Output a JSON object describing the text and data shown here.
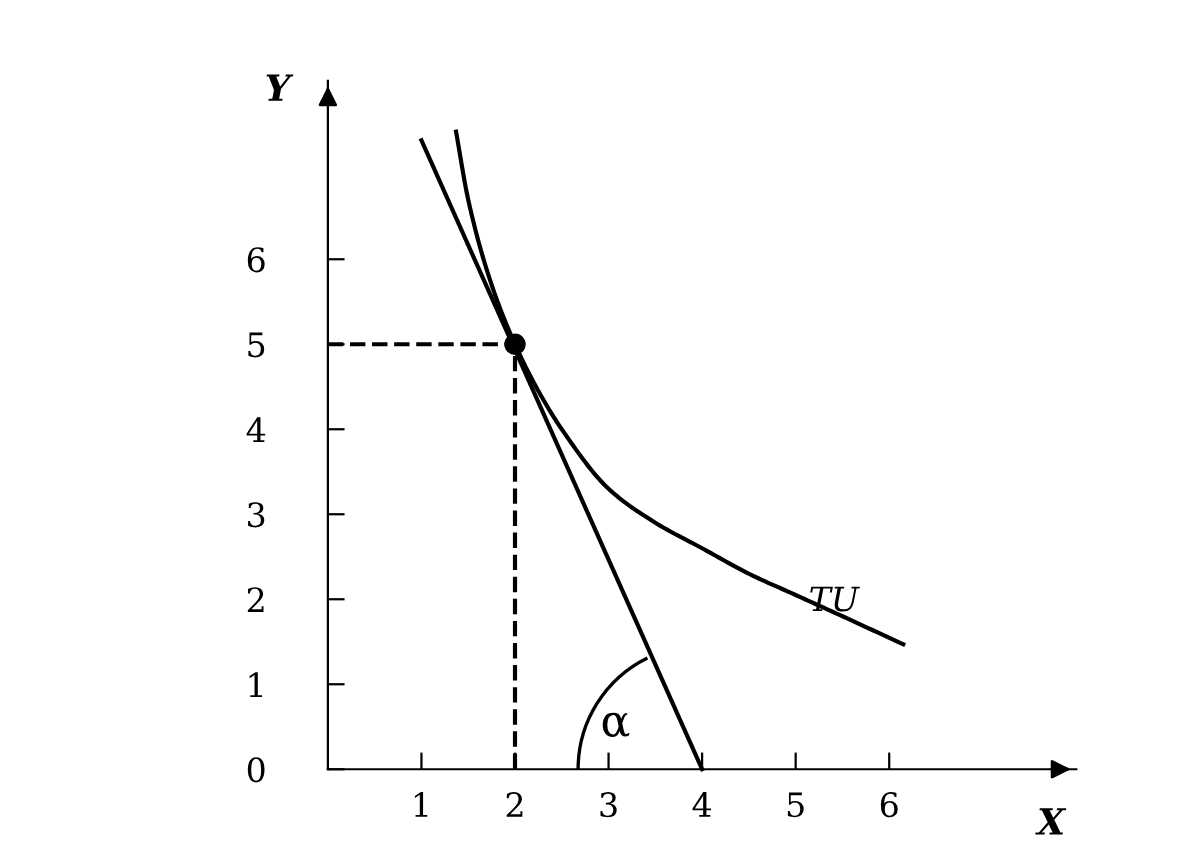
{
  "chart_data": {
    "type": "line",
    "xlabel": "X",
    "ylabel": "Y",
    "xlim": [
      0,
      8
    ],
    "ylim": [
      0,
      8.1
    ],
    "xticks": [
      1,
      2,
      3,
      4,
      5,
      6
    ],
    "yticks": [
      0,
      1,
      2,
      3,
      4,
      5,
      6
    ],
    "grid": false,
    "legend": false,
    "marker": "none",
    "series": [
      {
        "name": "TU",
        "color": "#000000",
        "x": [
          1.37,
          1.5,
          1.75,
          2,
          2.25,
          2.5,
          3,
          3.5,
          4,
          4.5,
          5,
          5.5,
          6.15
        ],
        "values": [
          7.5,
          6.7,
          5.7,
          5,
          4.45,
          4.0,
          3.3,
          2.9,
          2.6,
          2.3,
          2.05,
          1.8,
          1.47
        ]
      },
      {
        "color": "#000000",
        "x": [
          1.0,
          4
        ],
        "values": [
          7.4,
          0
        ]
      },
      {
        "color": "#000000",
        "x": [
          0,
          2,
          2
        ],
        "values": [
          5,
          5,
          0
        ],
        "line_style": "dashed"
      },
      {
        "type": "scatter",
        "color": "#000000",
        "x": [
          2
        ],
        "values": [
          5
        ],
        "marker": "circle"
      }
    ],
    "annotations": [
      {
        "text": "α",
        "x": 4,
        "y": 0
      }
    ]
  }
}
